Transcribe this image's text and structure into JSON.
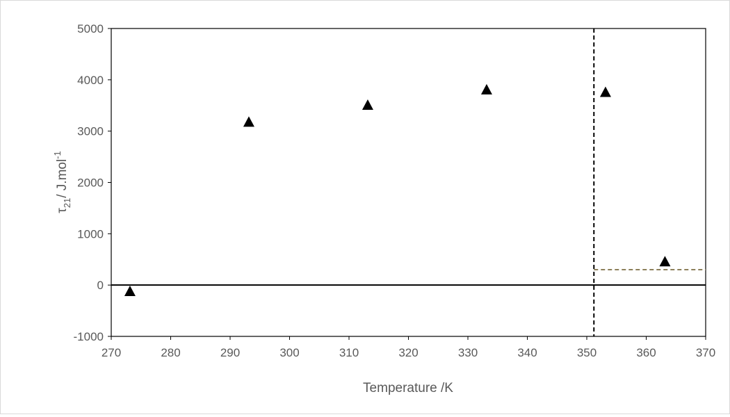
{
  "chart_data": {
    "type": "scatter",
    "title": "",
    "xlabel": "Temperature /K",
    "ylabel": {
      "symbol": "τ",
      "subscript": "21",
      "unit": "/ J.mol",
      "superscript": "-1"
    },
    "xlim": [
      270,
      370
    ],
    "ylim": [
      -1000,
      5000
    ],
    "x_ticks": [
      "270",
      "280",
      "290",
      "300",
      "310",
      "320",
      "330",
      "340",
      "350",
      "360",
      "370"
    ],
    "y_ticks": [
      "-1000",
      "0",
      "1000",
      "2000",
      "3000",
      "4000",
      "5000"
    ],
    "grid": false,
    "legend": "none",
    "marker": "triangle",
    "marker_color": "#000000",
    "series": [
      {
        "x": [
          273.15,
          293.15,
          313.15,
          333.15,
          353.15,
          363.15
        ],
        "y": [
          -120,
          3180,
          3510,
          3810,
          3760,
          460
        ]
      }
    ],
    "reference_lines": [
      {
        "kind": "vertical",
        "x": 351.2,
        "style": "dashed",
        "color": "#000000"
      },
      {
        "kind": "horizontal",
        "y": 300,
        "x_from": 351.2,
        "x_to": 370,
        "style": "dashed",
        "color": "#8c7f5a"
      },
      {
        "kind": "horizontal",
        "y": 0,
        "style": "solid",
        "color": "#000000"
      }
    ]
  }
}
